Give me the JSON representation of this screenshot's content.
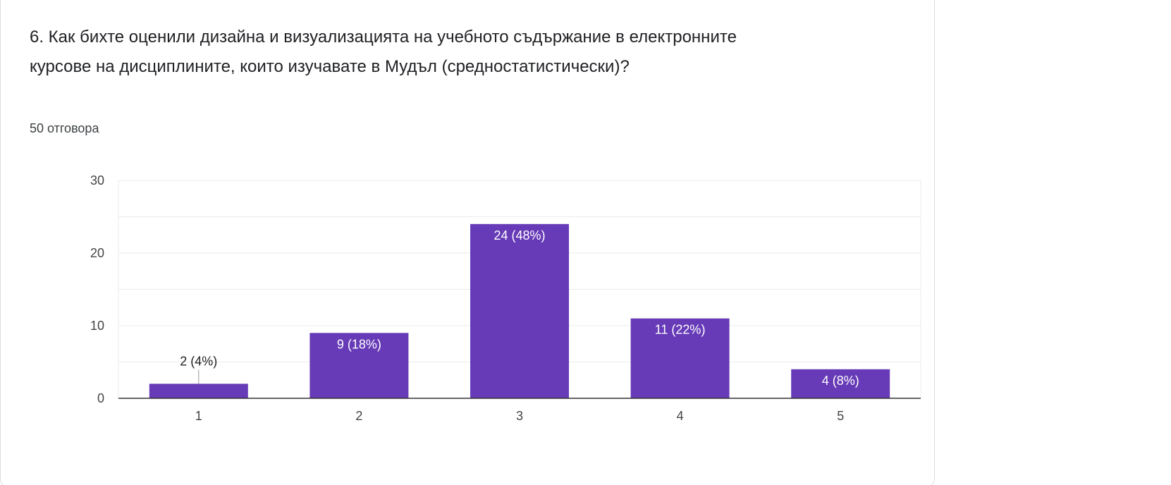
{
  "question": {
    "title": "6. Как бихте оценили дизайна и визуализацията на учебното съдържание в електронните курсове на дисциплините, които изучавате в Мудъл (средностатистически)?",
    "response_count": "50 отговора"
  },
  "colors": {
    "bar": "#673ab7",
    "label_inside": "#ffffff",
    "label_outside": "#222222",
    "grid": "#ebebeb",
    "axis": "#333333"
  },
  "chart_data": {
    "type": "bar",
    "categories": [
      "1",
      "2",
      "3",
      "4",
      "5"
    ],
    "values": [
      2,
      9,
      24,
      11,
      4
    ],
    "data_labels": [
      "2 (4%)",
      "9 (18%)",
      "24 (48%)",
      "11 (22%)",
      "4 (8%)"
    ],
    "y_ticks": [
      "0",
      "10",
      "20",
      "30"
    ],
    "ylim": [
      0,
      30
    ],
    "grid": true,
    "title": "",
    "xlabel": "",
    "ylabel": ""
  }
}
